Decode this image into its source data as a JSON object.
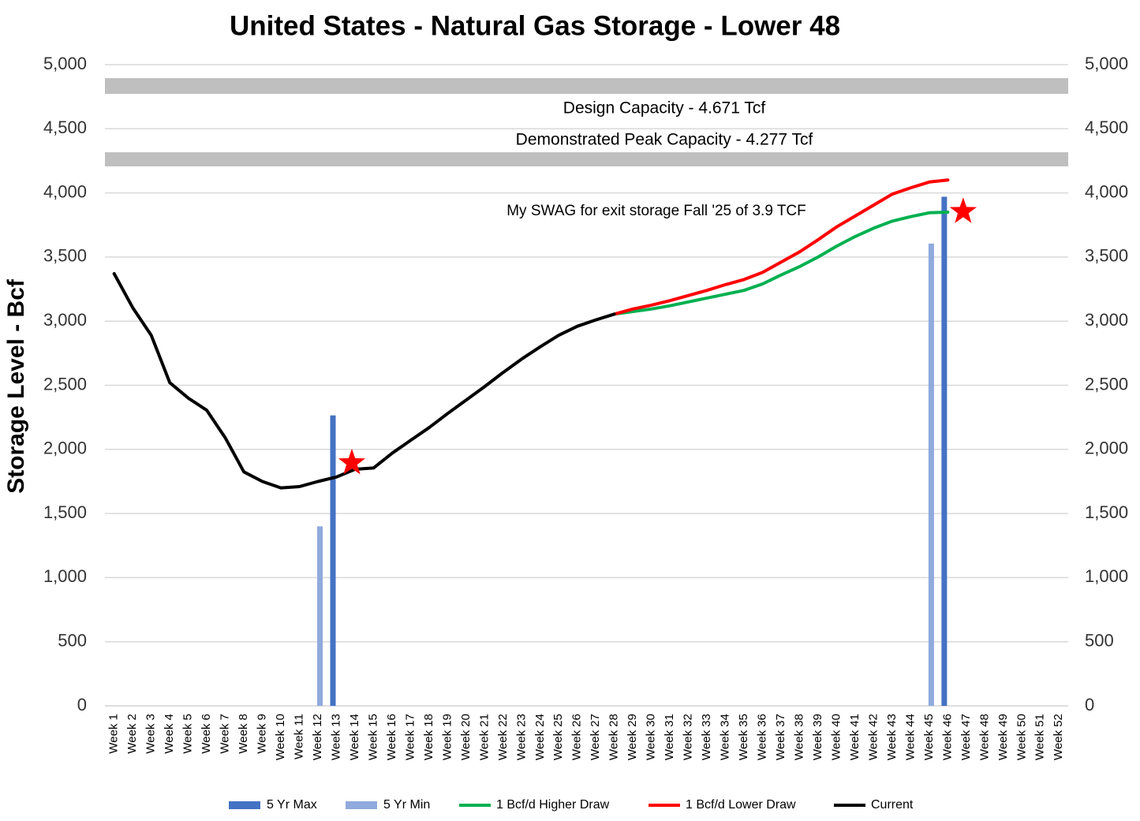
{
  "chart_data": {
    "type": "combo",
    "title": "United States - Natural Gas Storage - Lower 48",
    "y_label": "Storage Level - Bcf",
    "categories": [
      "Week 1",
      "Week 2",
      "Week 3",
      "Week 4",
      "Week 5",
      "Week 6",
      "Week 7",
      "Week 8",
      "Week 9",
      "Week 10",
      "Week 11",
      "Week 12",
      "Week 13",
      "Week 14",
      "Week 15",
      "Week 16",
      "Week 17",
      "Week 18",
      "Week 19",
      "Week 20",
      "Week 21",
      "Week 22",
      "Week 23",
      "Week 24",
      "Week 25",
      "Week 26",
      "Week 27",
      "Week 28",
      "Week 29",
      "Week 30",
      "Week 31",
      "Week 32",
      "Week 33",
      "Week 34",
      "Week 35",
      "Week 36",
      "Week 37",
      "Week 38",
      "Week 39",
      "Week 40",
      "Week 41",
      "Week 42",
      "Week 43",
      "Week 44",
      "Week 45",
      "Week 46",
      "Week 47",
      "Week 48",
      "Week 49",
      "Week 50",
      "Week 51",
      "Week 52"
    ],
    "series": [
      {
        "name": "5 Yr Max",
        "kind": "bar",
        "color": "#4472c4",
        "values": [
          null,
          null,
          null,
          null,
          null,
          null,
          null,
          null,
          null,
          null,
          null,
          null,
          2265,
          null,
          null,
          null,
          null,
          null,
          null,
          null,
          null,
          null,
          null,
          null,
          null,
          null,
          null,
          null,
          null,
          null,
          null,
          null,
          null,
          null,
          null,
          null,
          null,
          null,
          null,
          null,
          null,
          null,
          null,
          null,
          null,
          3970,
          null,
          null,
          null,
          null,
          null,
          null
        ]
      },
      {
        "name": "5 Yr Min",
        "kind": "bar",
        "color": "#8faadc",
        "values": [
          null,
          null,
          null,
          null,
          null,
          null,
          null,
          null,
          null,
          null,
          null,
          1400,
          null,
          null,
          null,
          null,
          null,
          null,
          null,
          null,
          null,
          null,
          null,
          null,
          null,
          null,
          null,
          null,
          null,
          null,
          null,
          null,
          null,
          null,
          null,
          null,
          null,
          null,
          null,
          null,
          null,
          null,
          null,
          null,
          3605,
          null,
          null,
          null,
          null,
          null,
          null,
          null
        ]
      },
      {
        "name": "1 Bcf/d Higher Draw",
        "kind": "line",
        "color": "#00b050",
        "values": [
          null,
          null,
          null,
          null,
          null,
          null,
          null,
          null,
          null,
          null,
          null,
          null,
          null,
          null,
          null,
          null,
          null,
          null,
          null,
          null,
          null,
          null,
          null,
          null,
          null,
          null,
          null,
          3055,
          3075,
          3095,
          3120,
          3150,
          3180,
          3210,
          3240,
          3290,
          3360,
          3425,
          3500,
          3585,
          3660,
          3725,
          3780,
          3815,
          3845,
          3850,
          null,
          null,
          null,
          null,
          null,
          null
        ]
      },
      {
        "name": "1 Bcf/d Lower Draw",
        "kind": "line",
        "color": "#ff0000",
        "values": [
          null,
          null,
          null,
          null,
          null,
          null,
          null,
          null,
          null,
          null,
          null,
          null,
          null,
          null,
          null,
          null,
          null,
          null,
          null,
          null,
          null,
          null,
          null,
          null,
          null,
          null,
          null,
          3055,
          3095,
          3125,
          3160,
          3200,
          3240,
          3285,
          3325,
          3380,
          3460,
          3540,
          3635,
          3735,
          3820,
          3905,
          3990,
          4040,
          4085,
          4100,
          null,
          null,
          null,
          null,
          null,
          null
        ]
      },
      {
        "name": "Current",
        "kind": "line",
        "color": "#000000",
        "values": [
          3370,
          3105,
          2890,
          2520,
          2400,
          2305,
          2090,
          1825,
          1750,
          1700,
          1710,
          1750,
          1785,
          1845,
          1855,
          1970,
          2070,
          2170,
          2280,
          2385,
          2490,
          2600,
          2705,
          2800,
          2890,
          2960,
          3010,
          3055,
          null,
          null,
          null,
          null,
          null,
          null,
          null,
          null,
          null,
          null,
          null,
          null,
          null,
          null,
          null,
          null,
          null,
          null,
          null,
          null,
          null,
          null,
          null,
          null
        ]
      }
    ],
    "stars": {
      "color": "#ff0000",
      "values": [
        null,
        null,
        null,
        null,
        null,
        null,
        null,
        null,
        null,
        null,
        null,
        null,
        null,
        1895,
        null,
        null,
        null,
        null,
        null,
        null,
        null,
        null,
        null,
        null,
        null,
        null,
        null,
        null,
        null,
        null,
        null,
        null,
        null,
        null,
        null,
        null,
        null,
        null,
        null,
        null,
        null,
        null,
        null,
        null,
        null,
        null,
        3855,
        null,
        null,
        null,
        null,
        null
      ]
    },
    "bands": [
      {
        "label": "Design Capacity -  4.671 Tcf",
        "range": [
          4772,
          4895
        ],
        "color": "#bfbfbf"
      },
      {
        "label": "Demonstrated Peak Capacity -  4.277 Tcf",
        "range": [
          4207,
          4317
        ],
        "color": "#bfbfbf"
      }
    ],
    "annotation": "My SWAG for exit storage Fall '25 of 3.9 TCF",
    "ylim": [
      0,
      5000
    ],
    "yticks": [
      0,
      500,
      {
        "value": 1000,
        "label": "1,000"
      },
      {
        "value": 1500,
        "label": "1,500"
      },
      {
        "value": 2000,
        "label": "2,000"
      },
      {
        "value": 2500,
        "label": "2,500"
      },
      {
        "value": 3000,
        "label": "3,000"
      },
      {
        "value": 3500,
        "label": "3,500"
      },
      {
        "value": 4000,
        "label": "4,000"
      },
      {
        "value": 4500,
        "label": "4,500"
      },
      {
        "value": 5000,
        "label": "5,000"
      }
    ],
    "y2lim": [
      0,
      5000
    ],
    "y2ticks": [
      0,
      500,
      {
        "value": 1000,
        "label": "1,000"
      },
      {
        "value": 1500,
        "label": "1,500"
      },
      {
        "value": 2000,
        "label": "2,000"
      },
      {
        "value": 2500,
        "label": "2,500"
      },
      {
        "value": 3000,
        "label": "3,000"
      },
      {
        "value": 3500,
        "label": "3,500"
      },
      {
        "value": 4000,
        "label": "4,000"
      },
      {
        "value": 4500,
        "label": "4,500"
      },
      {
        "value": 5000,
        "label": "5,000"
      }
    ],
    "grid": true,
    "legend": "bottom"
  }
}
